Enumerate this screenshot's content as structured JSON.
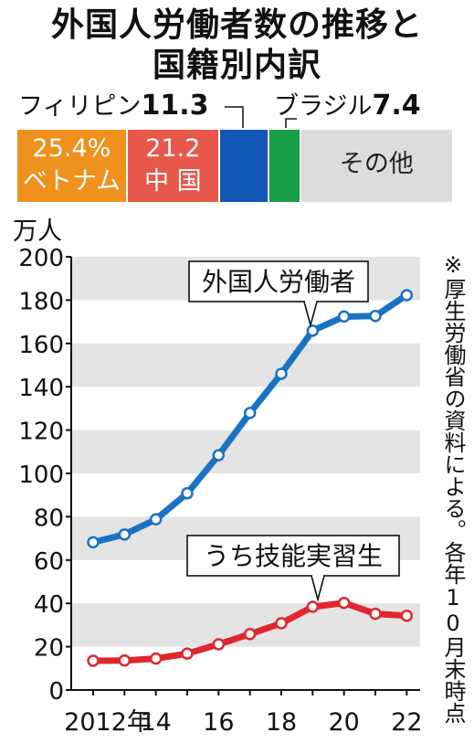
{
  "title_line1": "外国人労働者数の推移と",
  "title_line2": "国籍別内訳",
  "breakdown": {
    "segments": [
      {
        "name": "ベトナム",
        "value_text": "25.4%",
        "share": 25.4,
        "color": "#f0911e"
      },
      {
        "name": "中 国",
        "value_text": "21.2",
        "share": 21.2,
        "color": "#e8584a"
      },
      {
        "name": "フィリピン",
        "value_text": "11.3",
        "share": 11.3,
        "color": "#1257b5"
      },
      {
        "name": "ブラジル",
        "value_text": "7.4",
        "share": 7.4,
        "color": "#18a048"
      },
      {
        "name": "その他",
        "value_text": "",
        "share": 34.7,
        "color": "#dcdcdc"
      }
    ]
  },
  "note": "※厚生労働省の資料による。各年10月末時点",
  "chart_data": {
    "type": "line",
    "ylabel": "万人",
    "ylim": [
      0,
      200
    ],
    "yticks": [
      0,
      20,
      40,
      60,
      80,
      100,
      120,
      140,
      160,
      180,
      200
    ],
    "xlim": [
      2012,
      2022
    ],
    "x": [
      2012,
      2013,
      2014,
      2015,
      2016,
      2017,
      2018,
      2019,
      2020,
      2021,
      2022
    ],
    "xtick_labels": [
      {
        "value": 2012,
        "label": "2012年"
      },
      {
        "value": 2014,
        "label": "14"
      },
      {
        "value": 2016,
        "label": "16"
      },
      {
        "value": 2018,
        "label": "18"
      },
      {
        "value": 2020,
        "label": "20"
      },
      {
        "value": 2022,
        "label": "22"
      }
    ],
    "grid": "alternating horizontal bands",
    "series": [
      {
        "name": "外国人労働者",
        "color": "#1a72c4",
        "values": [
          68.2,
          71.8,
          78.8,
          90.8,
          108.4,
          127.9,
          146.0,
          165.9,
          172.4,
          172.7,
          182.3
        ]
      },
      {
        "name": "うち技能実習生",
        "color": "#e0262e",
        "values": [
          13.5,
          13.6,
          14.5,
          16.8,
          21.1,
          25.8,
          30.8,
          38.4,
          40.2,
          35.2,
          34.3
        ]
      }
    ]
  }
}
